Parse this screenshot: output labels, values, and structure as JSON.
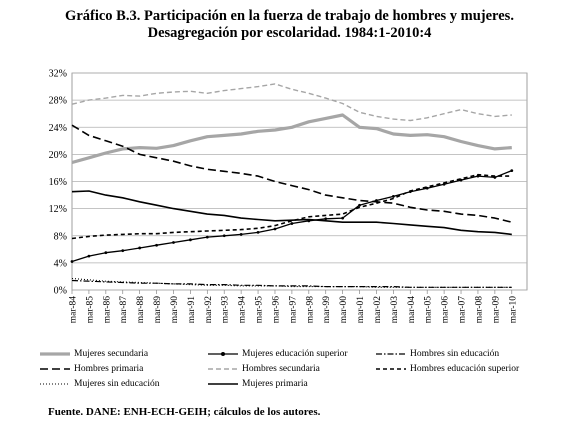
{
  "title": {
    "line1": "Gráfico B.3. Participación en la fuerza de trabajo de hombres y mujeres.",
    "line2": "Desagregación por escolaridad. 1984:1-2010:4"
  },
  "source": "Fuente. DANE: ENH-ECH-GEIH; cálculos de los autores.",
  "chart_data": {
    "type": "line",
    "title": "Gráfico B.3. Participación en la fuerza de trabajo de hombres y mujeres. Desagregación por escolaridad. 1984:1-2010:4",
    "xlabel": "",
    "ylabel": "",
    "ylim": [
      0,
      32
    ],
    "y_ticks": [
      "0%",
      "4%",
      "8%",
      "12%",
      "16%",
      "20%",
      "24%",
      "28%",
      "32%"
    ],
    "x_ticks": [
      "mar-84",
      "mar-85",
      "mar-86",
      "mar-87",
      "mar-88",
      "mar-89",
      "mar-90",
      "mar-91",
      "mar-92",
      "mar-93",
      "mar-94",
      "mar-95",
      "mar-96",
      "mar-97",
      "mar-98",
      "mar-99",
      "mar-00",
      "mar-01",
      "mar-02",
      "mar-03",
      "mar-04",
      "mar-05",
      "mar-06",
      "mar-07",
      "mar-08",
      "mar-09",
      "mar-10"
    ],
    "x_years": [
      1984,
      1985,
      1986,
      1987,
      1988,
      1989,
      1990,
      1991,
      1992,
      1993,
      1994,
      1995,
      1996,
      1997,
      1998,
      1999,
      2000,
      2001,
      2002,
      2003,
      2004,
      2005,
      2006,
      2007,
      2008,
      2009,
      2010
    ],
    "grid": "horizontal",
    "legend_position": "bottom",
    "series": [
      {
        "name": "Mujeres secundaria",
        "color": "#a6a6a6",
        "style": "solid-thick",
        "values": [
          18.8,
          19.5,
          20.2,
          20.8,
          21.0,
          20.9,
          21.3,
          22.0,
          22.6,
          22.8,
          23.0,
          23.4,
          23.6,
          24.0,
          24.8,
          25.3,
          25.8,
          24.0,
          23.8,
          23.0,
          22.8,
          22.9,
          22.6,
          21.9,
          21.3,
          20.8,
          21.0
        ]
      },
      {
        "name": "Mujeres educación superior",
        "color": "#000000",
        "style": "solid-markers",
        "values": [
          4.2,
          5.0,
          5.5,
          5.8,
          6.2,
          6.6,
          7.0,
          7.4,
          7.8,
          8.0,
          8.2,
          8.5,
          9.0,
          9.8,
          10.2,
          10.5,
          10.6,
          12.5,
          13.2,
          13.8,
          14.5,
          15.0,
          15.6,
          16.2,
          16.8,
          16.6,
          17.6
        ]
      },
      {
        "name": "Hombres sin educación",
        "color": "#000000",
        "style": "dash-dot",
        "values": [
          1.4,
          1.3,
          1.2,
          1.1,
          1.0,
          1.0,
          0.9,
          0.9,
          0.8,
          0.8,
          0.7,
          0.7,
          0.6,
          0.6,
          0.6,
          0.5,
          0.5,
          0.5,
          0.5,
          0.5,
          0.4,
          0.4,
          0.4,
          0.4,
          0.4,
          0.4,
          0.4
        ]
      },
      {
        "name": "Hombres primaria",
        "color": "#000000",
        "style": "long-dash",
        "values": [
          24.3,
          22.8,
          22.0,
          21.2,
          20.0,
          19.5,
          19.0,
          18.3,
          17.8,
          17.5,
          17.2,
          16.8,
          16.0,
          15.4,
          14.8,
          14.0,
          13.6,
          13.2,
          13.0,
          12.8,
          12.2,
          11.8,
          11.6,
          11.2,
          11.0,
          10.6,
          10.0
        ]
      },
      {
        "name": "Hombres secundaria",
        "color": "#a6a6a6",
        "style": "dashed",
        "values": [
          27.4,
          28.0,
          28.3,
          28.7,
          28.6,
          29.0,
          29.2,
          29.3,
          29.0,
          29.4,
          29.7,
          30.0,
          30.4,
          29.6,
          29.0,
          28.3,
          27.5,
          26.2,
          25.6,
          25.2,
          25.0,
          25.4,
          26.0,
          26.6,
          26.0,
          25.6,
          25.8
        ]
      },
      {
        "name": "Hombres educación superior",
        "color": "#000000",
        "style": "short-dash",
        "values": [
          7.6,
          7.9,
          8.1,
          8.2,
          8.3,
          8.3,
          8.5,
          8.6,
          8.7,
          8.8,
          8.9,
          9.1,
          9.5,
          10.2,
          10.8,
          11.0,
          11.2,
          12.2,
          12.8,
          13.5,
          14.6,
          15.2,
          15.8,
          16.4,
          17.0,
          16.8,
          16.8
        ]
      },
      {
        "name": "Mujeres sin educación",
        "color": "#000000",
        "style": "dotted",
        "values": [
          1.7,
          1.5,
          1.3,
          1.2,
          1.1,
          1.0,
          0.9,
          0.8,
          0.7,
          0.7,
          0.6,
          0.6,
          0.6,
          0.5,
          0.5,
          0.5,
          0.5,
          0.5,
          0.4,
          0.4,
          0.4,
          0.4,
          0.4,
          0.4,
          0.4,
          0.4,
          0.4
        ]
      },
      {
        "name": "Mujeres primaria",
        "color": "#000000",
        "style": "solid",
        "values": [
          14.5,
          14.6,
          14.0,
          13.6,
          13.0,
          12.5,
          12.0,
          11.6,
          11.2,
          11.0,
          10.6,
          10.4,
          10.2,
          10.3,
          10.4,
          10.2,
          10.0,
          10.0,
          10.0,
          9.8,
          9.6,
          9.4,
          9.2,
          8.8,
          8.6,
          8.5,
          8.2
        ]
      }
    ]
  }
}
